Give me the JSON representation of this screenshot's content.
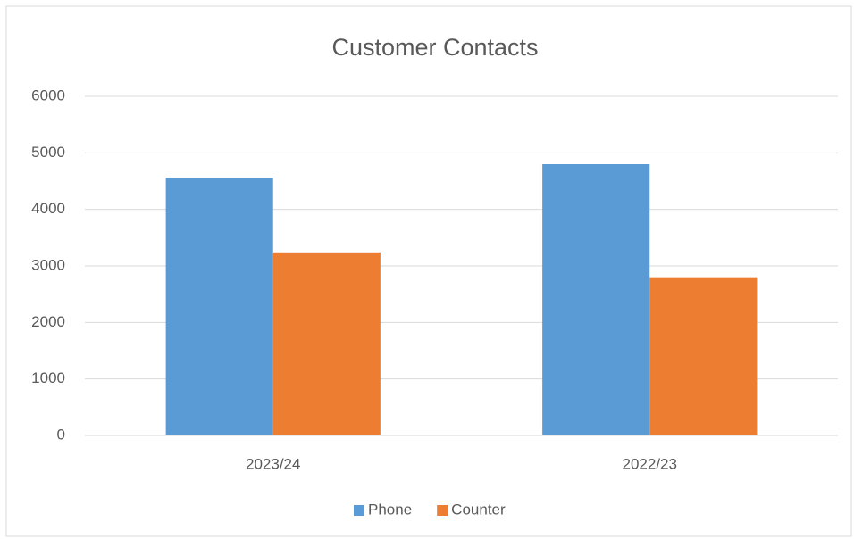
{
  "chart_data": {
    "type": "bar",
    "title": "Customer Contacts",
    "categories": [
      "2023/24",
      "2022/23"
    ],
    "series": [
      {
        "name": "Phone",
        "color": "#5b9bd5",
        "values": [
          4560,
          4800
        ]
      },
      {
        "name": "Counter",
        "color": "#ed7d31",
        "values": [
          3240,
          2800
        ]
      }
    ],
    "ylim": [
      0,
      6000
    ],
    "yticks": [
      0,
      1000,
      2000,
      3000,
      4000,
      5000,
      6000
    ],
    "grid": true,
    "legend": "bottom"
  }
}
